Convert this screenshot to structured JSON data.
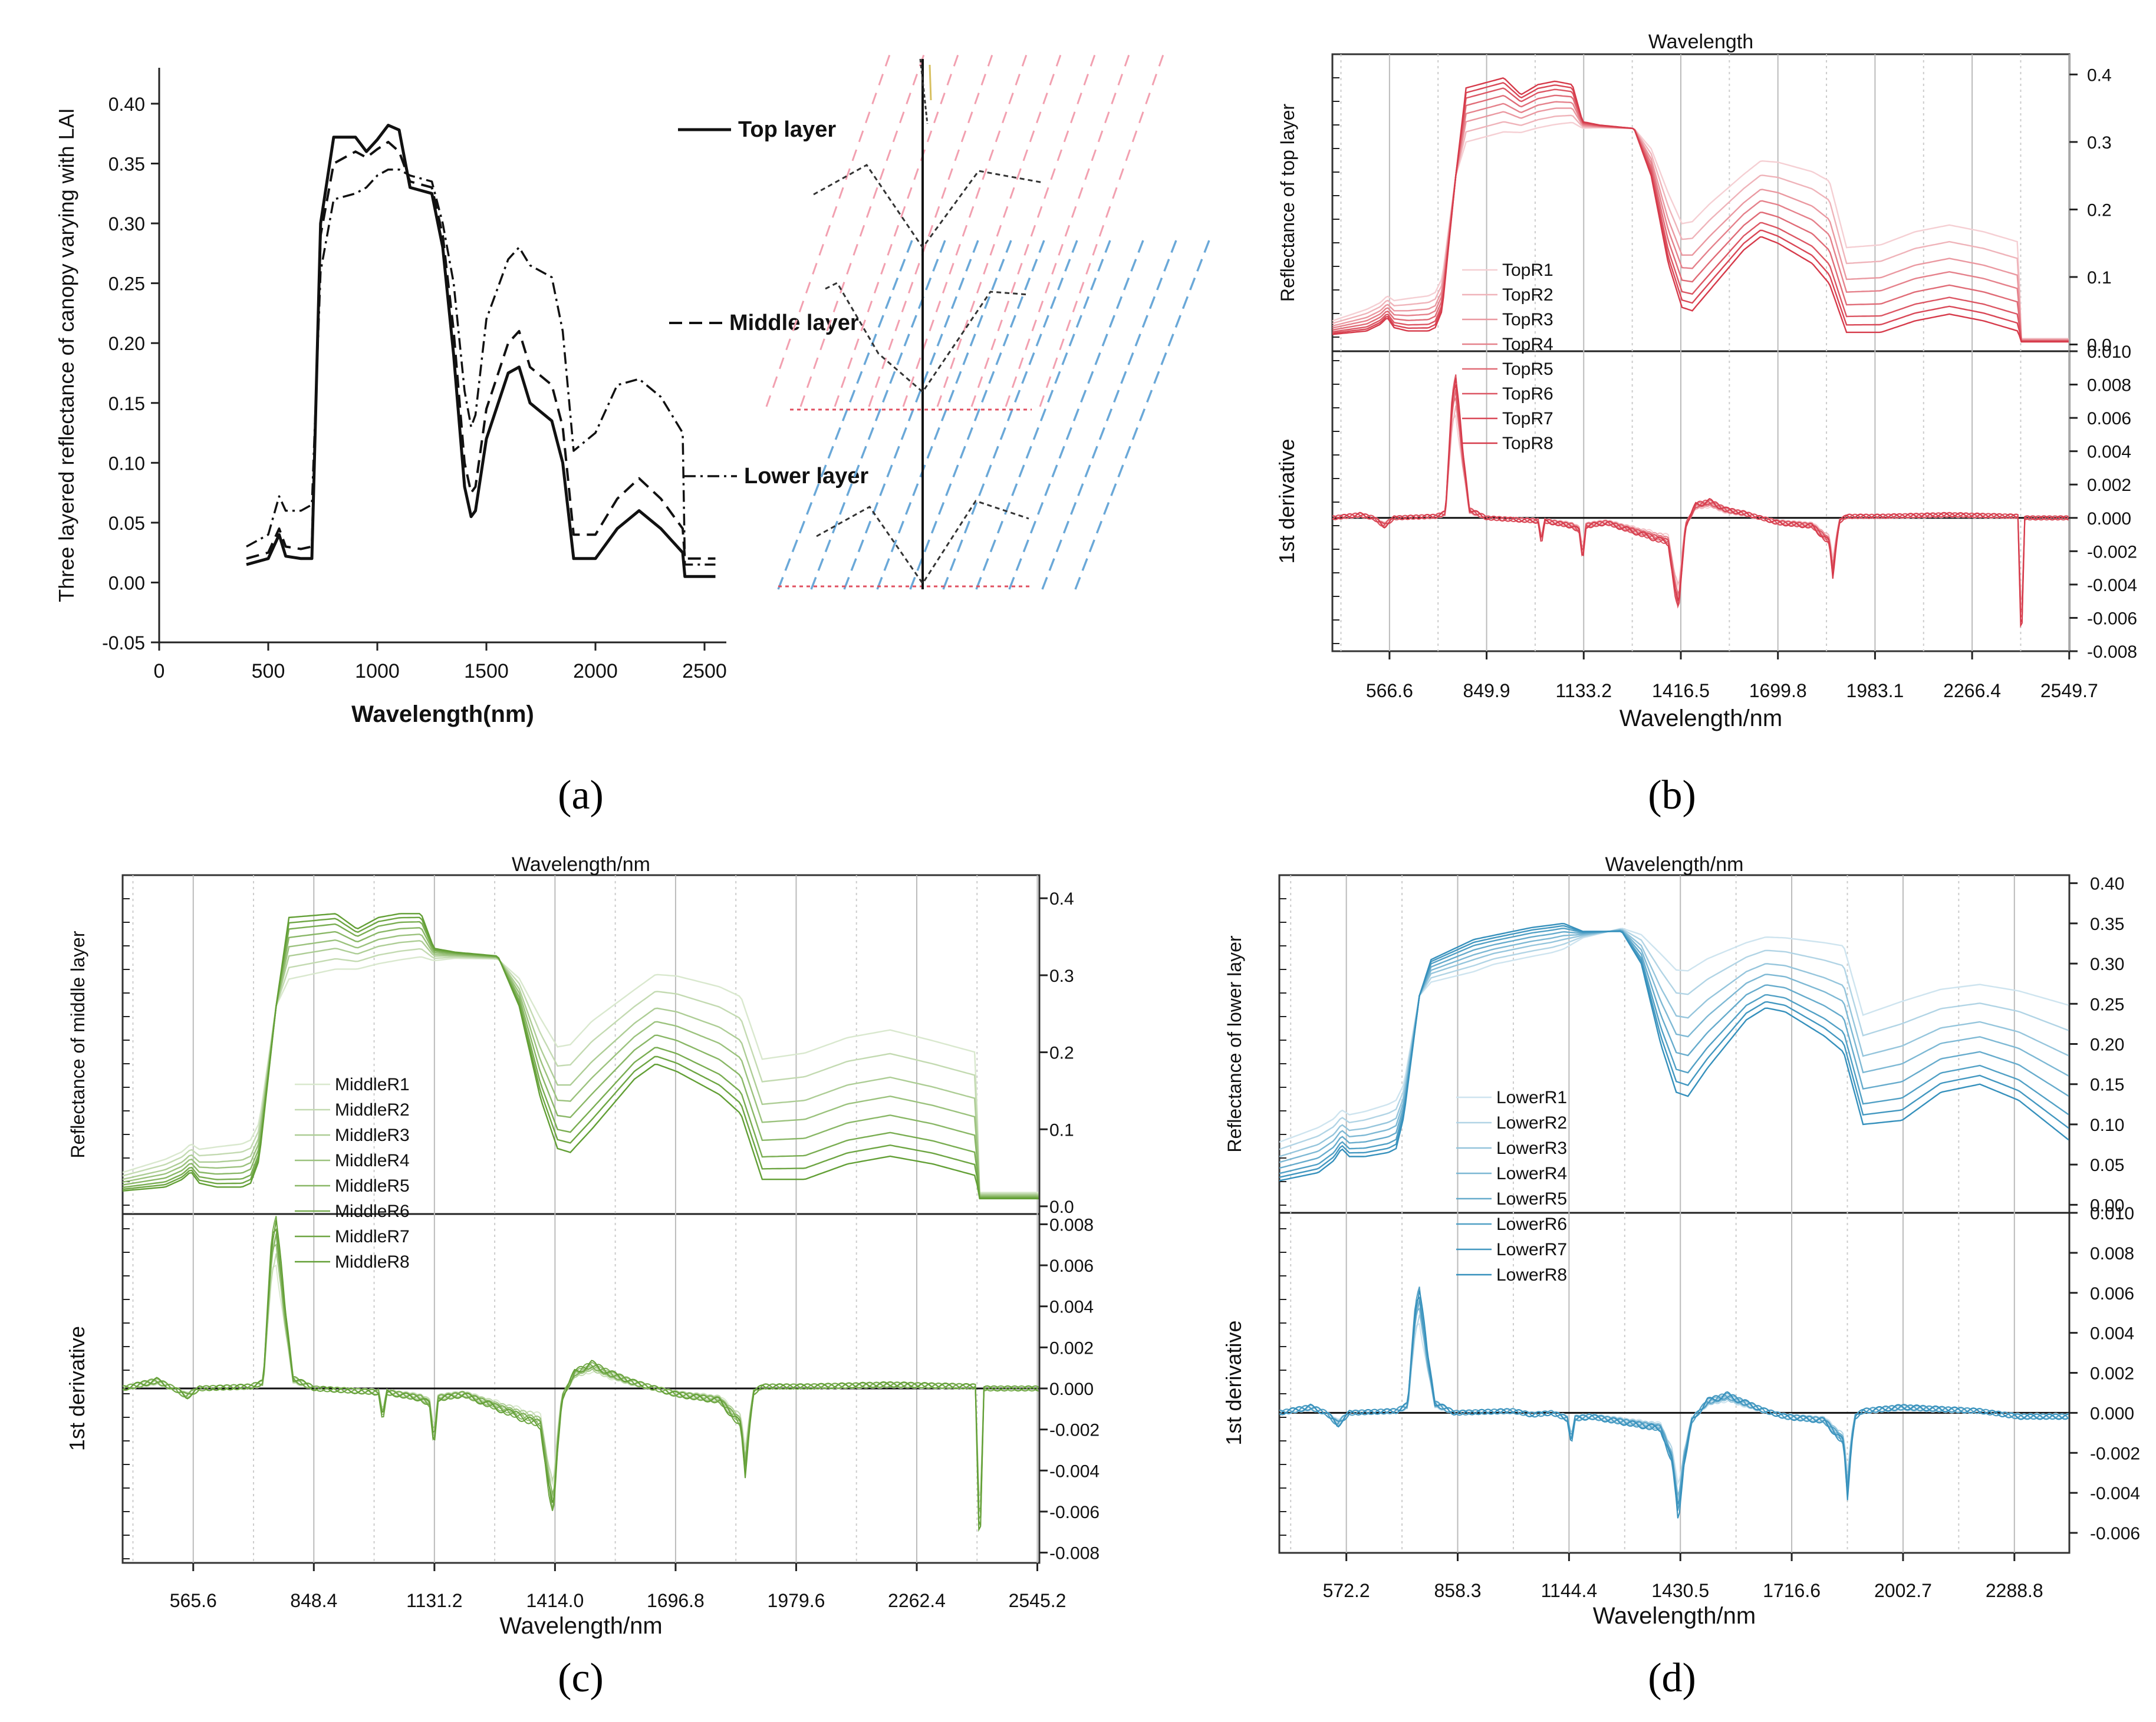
{
  "panel_labels": [
    "(a)",
    "(b)",
    "(c)",
    "(d)"
  ],
  "chart_data": [
    {
      "type": "line",
      "xlabel": "Wavelength(nm)",
      "ylabel": "Three layered reflectance of canopy varying with LAI",
      "xlim": [
        0,
        2600
      ],
      "ylim": [
        -0.05,
        0.43
      ],
      "xticks": [
        "0",
        "500",
        "1000",
        "1500",
        "2000",
        "2500"
      ],
      "yticks": [
        "-0.05",
        "0.00",
        "0.05",
        "0.10",
        "0.15",
        "0.20",
        "0.25",
        "0.30",
        "0.35",
        "0.40"
      ],
      "legend": [
        "Top layer",
        "Middle layer",
        "Lower layer"
      ],
      "x": [
        400,
        500,
        550,
        580,
        650,
        700,
        740,
        800,
        900,
        950,
        1000,
        1050,
        1100,
        1150,
        1250,
        1300,
        1350,
        1400,
        1430,
        1450,
        1500,
        1600,
        1650,
        1700,
        1800,
        1850,
        1900,
        2000,
        2100,
        2200,
        2300,
        2400,
        2410,
        2550
      ],
      "series": [
        {
          "name": "Top layer",
          "values": [
            0.015,
            0.02,
            0.04,
            0.022,
            0.02,
            0.02,
            0.3,
            0.372,
            0.372,
            0.36,
            0.37,
            0.382,
            0.378,
            0.33,
            0.325,
            0.28,
            0.19,
            0.08,
            0.055,
            0.06,
            0.12,
            0.175,
            0.18,
            0.15,
            0.135,
            0.1,
            0.02,
            0.02,
            0.045,
            0.06,
            0.045,
            0.025,
            0.005,
            0.005
          ]
        },
        {
          "name": "Middle layer",
          "values": [
            0.02,
            0.025,
            0.045,
            0.03,
            0.028,
            0.03,
            0.29,
            0.35,
            0.36,
            0.355,
            0.362,
            0.368,
            0.36,
            0.335,
            0.33,
            0.29,
            0.21,
            0.1,
            0.075,
            0.08,
            0.145,
            0.2,
            0.21,
            0.18,
            0.165,
            0.13,
            0.04,
            0.04,
            0.07,
            0.087,
            0.07,
            0.045,
            0.02,
            0.02
          ]
        },
        {
          "name": "Lower layer",
          "values": [
            0.03,
            0.04,
            0.072,
            0.06,
            0.06,
            0.065,
            0.26,
            0.32,
            0.325,
            0.33,
            0.34,
            0.345,
            0.345,
            0.34,
            0.335,
            0.3,
            0.25,
            0.16,
            0.13,
            0.14,
            0.22,
            0.27,
            0.28,
            0.265,
            0.255,
            0.21,
            0.11,
            0.125,
            0.165,
            0.17,
            0.155,
            0.125,
            0.015,
            0.015
          ]
        }
      ]
    },
    {
      "type": "line",
      "title": "Wavelength",
      "xlabel": "Wavelength/nm",
      "ylabel_top": "Reflectance of top layer",
      "ylabel_bottom": "1st derivative",
      "xlim": [
        400,
        2550
      ],
      "xticks": [
        "566.6",
        "849.9",
        "1133.2",
        "1416.5",
        "1699.8",
        "1983.1",
        "2266.4",
        "2549.7"
      ],
      "ylim_top": [
        -0.01,
        0.43
      ],
      "yticks_top": [
        "0.0",
        "0.1",
        "0.2",
        "0.3",
        "0.4"
      ],
      "ylim_bottom": [
        -0.008,
        0.01
      ],
      "yticks_bottom": [
        "0.010",
        "0.008",
        "0.006",
        "0.004",
        "0.002",
        "0.000",
        "-0.002",
        "-0.004",
        "-0.006",
        "-0.008"
      ],
      "color": "#d43040",
      "legend": [
        "TopR1",
        "TopR2",
        "TopR3",
        "TopR4",
        "TopR5",
        "TopR6",
        "TopR7",
        "TopR8"
      ],
      "lai_factors": [
        0.2,
        0.35,
        0.5,
        0.62,
        0.74,
        0.85,
        0.93,
        1.0
      ],
      "spectra_x": [
        400,
        500,
        540,
        560,
        580,
        620,
        680,
        700,
        720,
        760,
        790,
        900,
        950,
        1000,
        1050,
        1100,
        1130,
        1180,
        1280,
        1330,
        1380,
        1420,
        1450,
        1500,
        1600,
        1650,
        1700,
        1800,
        1850,
        1900,
        2000,
        2100,
        2200,
        2300,
        2400,
        2410,
        2550
      ],
      "spectra_top": [
        0.015,
        0.02,
        0.03,
        0.04,
        0.025,
        0.02,
        0.02,
        0.025,
        0.05,
        0.25,
        0.38,
        0.395,
        0.37,
        0.385,
        0.39,
        0.385,
        0.33,
        0.325,
        0.32,
        0.25,
        0.12,
        0.055,
        0.05,
        0.08,
        0.14,
        0.16,
        0.15,
        0.12,
        0.09,
        0.018,
        0.018,
        0.035,
        0.045,
        0.035,
        0.02,
        0.004,
        0.004
      ],
      "spectra_bottom": [
        0.04,
        0.06,
        0.07,
        0.08,
        0.075,
        0.08,
        0.085,
        0.09,
        0.11,
        0.25,
        0.28,
        0.295,
        0.3,
        0.305,
        0.31,
        0.315,
        0.318,
        0.32,
        0.32,
        0.3,
        0.25,
        0.21,
        0.215,
        0.24,
        0.28,
        0.3,
        0.3,
        0.29,
        0.28,
        0.175,
        0.18,
        0.2,
        0.21,
        0.2,
        0.185,
        0.01,
        0.01
      ],
      "deriv_x": [
        400,
        480,
        520,
        550,
        580,
        700,
        730,
        750,
        760,
        780,
        800,
        850,
        1000,
        1010,
        1020,
        1100,
        1120,
        1130,
        1140,
        1200,
        1380,
        1400,
        1410,
        1420,
        1430,
        1460,
        1500,
        1550,
        1600,
        1650,
        1700,
        1800,
        1850,
        1860,
        1870,
        1880,
        1900,
        2000,
        2200,
        2400,
        2410,
        2420,
        2550
      ],
      "deriv_values": [
        0,
        0.0002,
        0.0,
        -0.0005,
        0.0,
        0.0001,
        0.0003,
        0.0075,
        0.0085,
        0.004,
        0.0005,
        0.0,
        -0.0002,
        -0.0015,
        -0.0002,
        -0.0005,
        -0.0008,
        -0.0025,
        -0.0005,
        -0.0003,
        -0.0015,
        -0.0045,
        -0.0055,
        -0.003,
        -0.0005,
        0.0008,
        0.001,
        0.0005,
        0.0003,
        0.0,
        -0.0003,
        -0.0005,
        -0.0015,
        -0.0035,
        -0.0015,
        -0.0002,
        0.0001,
        0.0001,
        0.0002,
        0.0001,
        -0.0077,
        0.0,
        0.0
      ]
    },
    {
      "type": "line",
      "title": "Wavelength/nm",
      "xlabel": "Wavelength/nm",
      "ylabel_top": "Reflectance of middle layer",
      "ylabel_bottom": "1st derivative",
      "xlim": [
        400,
        2550
      ],
      "xticks": [
        "565.6",
        "848.4",
        "1131.2",
        "1414.0",
        "1696.8",
        "1979.6",
        "2262.4",
        "2545.2"
      ],
      "ylim_top": [
        -0.01,
        0.43
      ],
      "yticks_top": [
        "0.0",
        "0.1",
        "0.2",
        "0.3",
        "0.4"
      ],
      "ylim_bottom": [
        -0.0085,
        0.0085
      ],
      "yticks_bottom": [
        "0.008",
        "0.006",
        "0.004",
        "0.002",
        "0.000",
        "-0.002",
        "-0.004",
        "-0.006",
        "-0.008"
      ],
      "color": "#5a9a2a",
      "legend": [
        "MiddleR1",
        "MiddleR2",
        "MiddleR3",
        "MiddleR4",
        "MiddleR5",
        "MiddleR6",
        "MiddleR7",
        "MiddleR8"
      ],
      "lai_factors": [
        0.2,
        0.35,
        0.5,
        0.62,
        0.74,
        0.85,
        0.93,
        1.0
      ],
      "spectra_x": [
        400,
        500,
        540,
        560,
        580,
        620,
        680,
        700,
        720,
        760,
        790,
        900,
        950,
        1000,
        1050,
        1100,
        1130,
        1180,
        1280,
        1330,
        1380,
        1420,
        1450,
        1500,
        1600,
        1650,
        1700,
        1800,
        1850,
        1900,
        2000,
        2100,
        2200,
        2300,
        2400,
        2410,
        2550
      ],
      "spectra_top": [
        0.02,
        0.025,
        0.035,
        0.045,
        0.03,
        0.025,
        0.025,
        0.03,
        0.06,
        0.26,
        0.375,
        0.38,
        0.36,
        0.375,
        0.38,
        0.38,
        0.335,
        0.33,
        0.325,
        0.26,
        0.14,
        0.075,
        0.07,
        0.1,
        0.165,
        0.185,
        0.175,
        0.145,
        0.12,
        0.035,
        0.035,
        0.055,
        0.065,
        0.055,
        0.04,
        0.01,
        0.01
      ],
      "spectra_bottom": [
        0.05,
        0.07,
        0.08,
        0.09,
        0.085,
        0.09,
        0.095,
        0.1,
        0.12,
        0.26,
        0.275,
        0.29,
        0.295,
        0.3,
        0.305,
        0.31,
        0.315,
        0.32,
        0.32,
        0.305,
        0.27,
        0.24,
        0.245,
        0.275,
        0.31,
        0.33,
        0.33,
        0.32,
        0.31,
        0.23,
        0.24,
        0.26,
        0.27,
        0.255,
        0.24,
        0.02,
        0.02
      ],
      "deriv_x": [
        400,
        480,
        520,
        550,
        580,
        700,
        730,
        750,
        760,
        780,
        800,
        850,
        1000,
        1010,
        1020,
        1100,
        1120,
        1130,
        1140,
        1200,
        1380,
        1400,
        1410,
        1420,
        1430,
        1460,
        1500,
        1550,
        1600,
        1650,
        1700,
        1800,
        1850,
        1860,
        1870,
        1880,
        1900,
        2000,
        2200,
        2400,
        2410,
        2420,
        2550
      ],
      "deriv_values": [
        0,
        0.0004,
        0.0,
        -0.0004,
        0.0,
        0.0001,
        0.0003,
        0.0075,
        0.0083,
        0.004,
        0.0005,
        0.0,
        -0.0002,
        -0.0015,
        -0.0002,
        -0.0005,
        -0.0008,
        -0.0028,
        -0.0005,
        -0.0003,
        -0.0018,
        -0.005,
        -0.0062,
        -0.003,
        -0.0005,
        0.0008,
        0.0012,
        0.0007,
        0.0003,
        0.0,
        -0.0003,
        -0.0006,
        -0.0018,
        -0.0042,
        -0.0018,
        -0.0002,
        0.0001,
        0.0001,
        0.0002,
        0.0001,
        -0.0082,
        0.0,
        0.0
      ]
    },
    {
      "type": "line",
      "title": "Wavelength/nm",
      "xlabel": "Wavelength/nm",
      "ylabel_top": "Reflectance of lower layer",
      "ylabel_bottom": "1st derivative",
      "xlim": [
        400,
        2430
      ],
      "xticks": [
        "572.2",
        "858.3",
        "1144.4",
        "1430.5",
        "1716.6",
        "2002.7",
        "2288.8"
      ],
      "ylim_top": [
        -0.01,
        0.41
      ],
      "yticks_top": [
        "0.40",
        "0.35",
        "0.30",
        "0.25",
        "0.20",
        "0.15",
        "0.10",
        "0.05",
        "0.00"
      ],
      "ylim_bottom": [
        -0.007,
        0.01
      ],
      "yticks_bottom": [
        "0.010",
        "0.008",
        "0.006",
        "0.004",
        "0.002",
        "0.000",
        "-0.002",
        "-0.004",
        "-0.006"
      ],
      "color": "#2a8ab8",
      "legend": [
        "LowerR1",
        "LowerR2",
        "LowerR3",
        "LowerR4",
        "LowerR5",
        "LowerR6",
        "LowerR7",
        "LowerR8"
      ],
      "lai_factors": [
        0.2,
        0.35,
        0.5,
        0.62,
        0.74,
        0.85,
        0.93,
        1.0
      ],
      "spectra_x": [
        400,
        500,
        540,
        560,
        580,
        620,
        680,
        700,
        720,
        760,
        790,
        900,
        950,
        1000,
        1050,
        1100,
        1130,
        1180,
        1280,
        1330,
        1380,
        1420,
        1450,
        1500,
        1600,
        1650,
        1700,
        1800,
        1850,
        1900,
        2000,
        2100,
        2200,
        2300,
        2430
      ],
      "spectra_top": [
        0.03,
        0.04,
        0.055,
        0.07,
        0.06,
        0.06,
        0.065,
        0.07,
        0.11,
        0.26,
        0.305,
        0.33,
        0.335,
        0.34,
        0.345,
        0.348,
        0.35,
        0.34,
        0.34,
        0.3,
        0.2,
        0.14,
        0.135,
        0.17,
        0.23,
        0.245,
        0.24,
        0.21,
        0.19,
        0.1,
        0.105,
        0.14,
        0.15,
        0.13,
        0.08
      ],
      "spectra_bottom": [
        0.09,
        0.11,
        0.12,
        0.13,
        0.125,
        0.13,
        0.14,
        0.145,
        0.16,
        0.26,
        0.27,
        0.28,
        0.29,
        0.295,
        0.3,
        0.305,
        0.31,
        0.33,
        0.345,
        0.345,
        0.34,
        0.33,
        0.33,
        0.34,
        0.35,
        0.355,
        0.355,
        0.355,
        0.355,
        0.27,
        0.29,
        0.3,
        0.305,
        0.3,
        0.29
      ],
      "deriv_x": [
        400,
        480,
        520,
        550,
        580,
        700,
        730,
        750,
        760,
        780,
        800,
        850,
        1000,
        1050,
        1100,
        1140,
        1150,
        1160,
        1200,
        1380,
        1410,
        1425,
        1440,
        1460,
        1500,
        1550,
        1600,
        1650,
        1700,
        1800,
        1850,
        1860,
        1870,
        1880,
        1900,
        2000,
        2200,
        2300,
        2430
      ],
      "deriv_values": [
        0,
        0.0003,
        0.0,
        -0.0006,
        0.0,
        0.0001,
        0.0004,
        0.0055,
        0.0062,
        0.003,
        0.0005,
        0.0,
        0.0001,
        -0.0001,
        0.0,
        -0.0003,
        -0.0015,
        -0.0003,
        -0.0002,
        -0.0008,
        -0.0025,
        -0.0052,
        -0.0025,
        -0.0004,
        0.0006,
        0.0009,
        0.0005,
        0.0001,
        -0.0002,
        -0.0004,
        -0.0015,
        -0.0042,
        -0.0015,
        -0.0002,
        0.0001,
        0.0003,
        0.0001,
        -0.0002,
        -0.0002
      ]
    }
  ]
}
